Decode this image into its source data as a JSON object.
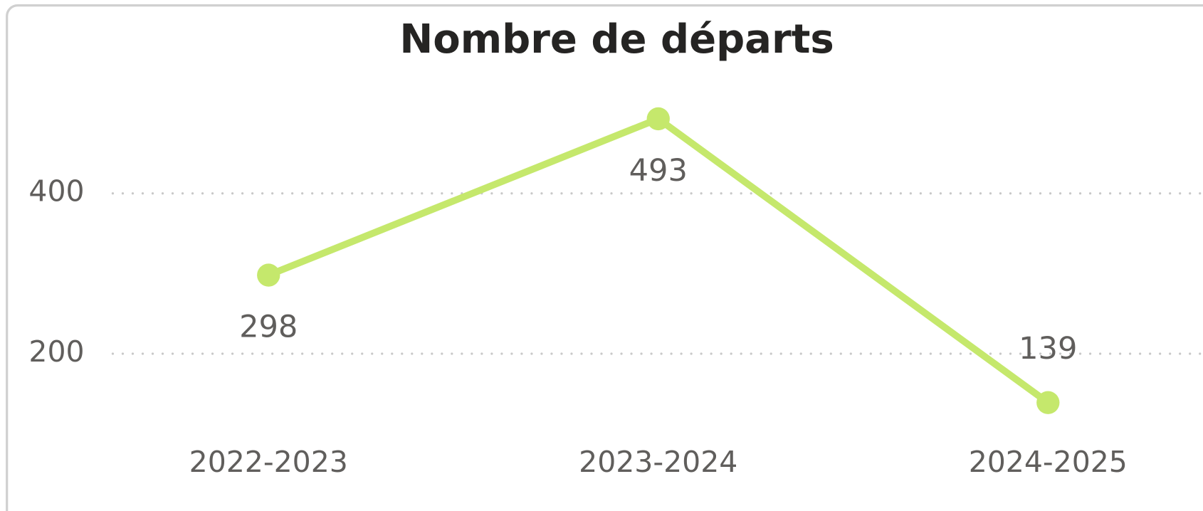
{
  "chart_data": {
    "type": "line",
    "title": "Nombre de départs",
    "categories": [
      "2022-2023",
      "2023-2024",
      "2024-2025"
    ],
    "series": [
      {
        "name": "Nombre de départs",
        "color": "#c5e86c",
        "values": [
          298,
          493,
          139
        ]
      }
    ],
    "ylim": [
      100,
      540
    ],
    "yticks": [
      200,
      400
    ],
    "grid": true
  }
}
